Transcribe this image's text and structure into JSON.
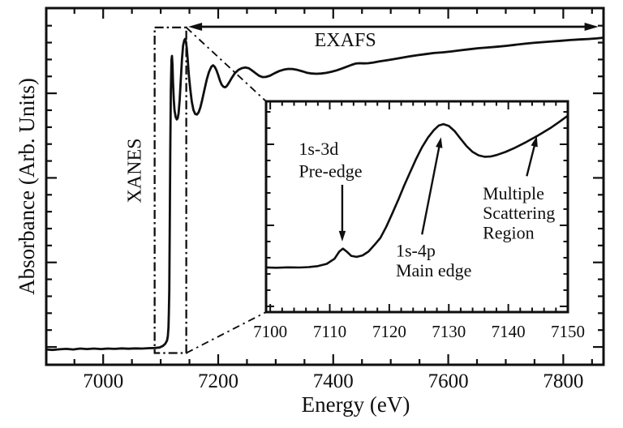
{
  "figure": {
    "background": "#ffffff",
    "ink_color": "#0f0f0f",
    "xlabel": "Energy (eV)",
    "ylabel": "Absorbance (Arb. Units)"
  },
  "chart_data": [
    {
      "id": "main",
      "type": "line",
      "title": "",
      "xlabel": "Energy (eV)",
      "ylabel": "Absorbance (Arb. Units)",
      "xlim": [
        6901,
        7870
      ],
      "ylim": [
        0,
        1
      ],
      "grid": false,
      "x_ticks": {
        "major": [
          7000,
          7200,
          7400,
          7600,
          7800
        ],
        "minor": [
          6950,
          7050,
          7100,
          7150,
          7250,
          7300,
          7350,
          7450,
          7500,
          7550,
          7650,
          7700,
          7750,
          7850
        ],
        "labels": [
          "7000",
          "7200",
          "7400",
          "7600",
          "7800"
        ]
      },
      "y_ticks": {
        "major": [
          0.7611,
          0.524,
          0.287,
          0.0499
        ],
        "minor": [
          0.9507,
          0.9033,
          0.8559,
          0.8085,
          0.7137,
          0.6662,
          0.6188,
          0.5714,
          0.4766,
          0.4292,
          0.3818,
          0.3344,
          0.2396,
          0.1921,
          0.1447,
          0.0973
        ]
      },
      "series": [
        {
          "name": "absorption-spectrum",
          "points": [
            [
              6901,
              0.043
            ],
            [
              6912,
              0.0415
            ],
            [
              6924,
              0.0435
            ],
            [
              6936,
              0.0445
            ],
            [
              6948,
              0.043
            ],
            [
              6960,
              0.0455
            ],
            [
              6972,
              0.044
            ],
            [
              6984,
              0.0455
            ],
            [
              6996,
              0.044
            ],
            [
              7008,
              0.0455
            ],
            [
              7020,
              0.0445
            ],
            [
              7032,
              0.046
            ],
            [
              7044,
              0.045
            ],
            [
              7056,
              0.046
            ],
            [
              7068,
              0.0455
            ],
            [
              7080,
              0.0465
            ],
            [
              7090,
              0.047
            ],
            [
              7098,
              0.0485
            ],
            [
              7104,
              0.053
            ],
            [
              7108,
              0.059
            ],
            [
              7111,
              0.068
            ],
            [
              7112.5,
              0.08
            ],
            [
              7113.5,
              0.105
            ],
            [
              7114.3,
              0.15
            ],
            [
              7115,
              0.21
            ],
            [
              7115.8,
              0.4
            ],
            [
              7116.6,
              0.6
            ],
            [
              7117.6,
              0.77
            ],
            [
              7118.8,
              0.855
            ],
            [
              7119.6,
              0.866
            ],
            [
              7120.5,
              0.843
            ],
            [
              7121.5,
              0.79
            ],
            [
              7122.7,
              0.744
            ],
            [
              7124,
              0.714
            ],
            [
              7126,
              0.695
            ],
            [
              7128,
              0.688
            ],
            [
              7129.5,
              0.691
            ],
            [
              7131,
              0.704
            ],
            [
              7133,
              0.743
            ],
            [
              7135,
              0.8
            ],
            [
              7137,
              0.856
            ],
            [
              7139,
              0.895
            ],
            [
              7141,
              0.91
            ],
            [
              7142.5,
              0.9135
            ],
            [
              7144,
              0.906
            ],
            [
              7145.5,
              0.886
            ],
            [
              7147,
              0.856
            ],
            [
              7149,
              0.812
            ],
            [
              7151.5,
              0.772
            ],
            [
              7154,
              0.738
            ],
            [
              7157,
              0.714
            ],
            [
              7160,
              0.7035
            ],
            [
              7163,
              0.7015
            ],
            [
              7166,
              0.708
            ],
            [
              7169,
              0.7215
            ],
            [
              7172,
              0.741
            ],
            [
              7176,
              0.771
            ],
            [
              7180,
              0.799
            ],
            [
              7184,
              0.821
            ],
            [
              7188,
              0.8355
            ],
            [
              7191,
              0.8395
            ],
            [
              7194,
              0.8355
            ],
            [
              7197,
              0.8255
            ],
            [
              7200,
              0.812
            ],
            [
              7203,
              0.797
            ],
            [
              7206,
              0.7855
            ],
            [
              7209,
              0.7795
            ],
            [
              7212,
              0.778
            ],
            [
              7215,
              0.7815
            ],
            [
              7219,
              0.7915
            ],
            [
              7224,
              0.8055
            ],
            [
              7229,
              0.8175
            ],
            [
              7235,
              0.8265
            ],
            [
              7241,
              0.8315
            ],
            [
              7247,
              0.8335
            ],
            [
              7253,
              0.8315
            ],
            [
              7259,
              0.825
            ],
            [
              7265,
              0.8175
            ],
            [
              7271,
              0.8105
            ],
            [
              7277,
              0.8065
            ],
            [
              7283,
              0.807
            ],
            [
              7290,
              0.8105
            ],
            [
              7298,
              0.8175
            ],
            [
              7306,
              0.8235
            ],
            [
              7314,
              0.8275
            ],
            [
              7322,
              0.8295
            ],
            [
              7330,
              0.829
            ],
            [
              7338,
              0.8265
            ],
            [
              7347,
              0.8225
            ],
            [
              7355,
              0.8185
            ],
            [
              7363,
              0.8165
            ],
            [
              7371,
              0.816
            ],
            [
              7379,
              0.8165
            ],
            [
              7388,
              0.8185
            ],
            [
              7397,
              0.8215
            ],
            [
              7406,
              0.8255
            ],
            [
              7415,
              0.8305
            ],
            [
              7424,
              0.836
            ],
            [
              7432,
              0.841
            ],
            [
              7439,
              0.8445
            ],
            [
              7446,
              0.8455
            ],
            [
              7453,
              0.845
            ],
            [
              7461,
              0.8455
            ],
            [
              7470,
              0.8475
            ],
            [
              7480,
              0.8505
            ],
            [
              7492,
              0.8535
            ],
            [
              7504,
              0.8565
            ],
            [
              7518,
              0.8605
            ],
            [
              7532,
              0.8645
            ],
            [
              7546,
              0.868
            ],
            [
              7560,
              0.871
            ],
            [
              7575,
              0.874
            ],
            [
              7590,
              0.876
            ],
            [
              7605,
              0.8785
            ],
            [
              7620,
              0.8815
            ],
            [
              7636,
              0.8845
            ],
            [
              7652,
              0.8875
            ],
            [
              7668,
              0.8895
            ],
            [
              7684,
              0.8915
            ],
            [
              7700,
              0.894
            ],
            [
              7716,
              0.897
            ],
            [
              7732,
              0.9
            ],
            [
              7748,
              0.9025
            ],
            [
              7764,
              0.9045
            ],
            [
              7780,
              0.9065
            ],
            [
              7796,
              0.9085
            ],
            [
              7812,
              0.9105
            ],
            [
              7828,
              0.912
            ],
            [
              7844,
              0.9135
            ],
            [
              7858,
              0.915
            ],
            [
              7870,
              0.917
            ]
          ]
        }
      ],
      "region_box": {
        "label": "XANES",
        "x1": 7089.5,
        "x2": 7144.5,
        "y1": 0.033,
        "y2": 0.9457,
        "label_at": {
          "x": 7056.6,
          "y": 0.5443
        }
      },
      "range_arrow": {
        "label": "EXAFS",
        "x1": 7148,
        "x2": 7861,
        "y": 0.9477,
        "label_at": {
          "x": 7421,
          "y": 0.8932
        }
      }
    },
    {
      "id": "inset",
      "type": "line",
      "title": "",
      "xlabel": "",
      "ylabel": "",
      "xlim": [
        7099.3,
        7150
      ],
      "ylim": [
        0,
        1
      ],
      "grid": false,
      "x_ticks": {
        "major": [
          7100,
          7110,
          7120,
          7130,
          7140,
          7150
        ],
        "minor": [
          7102,
          7104,
          7106,
          7108,
          7112,
          7114,
          7116,
          7118,
          7122,
          7124,
          7126,
          7128,
          7132,
          7134,
          7136,
          7138,
          7142,
          7144,
          7146,
          7148
        ],
        "labels": [
          "7100",
          "7110",
          "7120",
          "7130",
          "7140",
          "7150"
        ]
      },
      "y_ticks": {
        "major": [
          0.7962,
          0.4117,
          0.0272
        ],
        "minor": [
          0.95,
          0.8731,
          0.7193,
          0.6424,
          0.5655,
          0.4886,
          0.3348,
          0.2579,
          0.181,
          0.1041
        ]
      },
      "series": [
        {
          "name": "xanes-detail",
          "points": [
            [
              7099.3,
              0.212
            ],
            [
              7101,
              0.2105
            ],
            [
              7103,
              0.2125
            ],
            [
              7105,
              0.2115
            ],
            [
              7106.5,
              0.2135
            ],
            [
              7108,
              0.218
            ],
            [
              7109.5,
              0.229
            ],
            [
              7110.8,
              0.253
            ],
            [
              7111.6,
              0.287
            ],
            [
              7112.2,
              0.301
            ],
            [
              7112.8,
              0.288
            ],
            [
              7113.6,
              0.267
            ],
            [
              7114.5,
              0.262
            ],
            [
              7115.5,
              0.269
            ],
            [
              7116.5,
              0.287
            ],
            [
              7117.5,
              0.318
            ],
            [
              7118.5,
              0.352
            ],
            [
              7119.5,
              0.405
            ],
            [
              7120.5,
              0.468
            ],
            [
              7121.5,
              0.532
            ],
            [
              7122.5,
              0.6
            ],
            [
              7123.5,
              0.664
            ],
            [
              7124.5,
              0.726
            ],
            [
              7125.5,
              0.782
            ],
            [
              7126.5,
              0.828
            ],
            [
              7127.5,
              0.864
            ],
            [
              7128.3,
              0.885
            ],
            [
              7129.1,
              0.892
            ],
            [
              7130,
              0.883
            ],
            [
              7131,
              0.858
            ],
            [
              7132,
              0.822
            ],
            [
              7133,
              0.787
            ],
            [
              7134,
              0.76
            ],
            [
              7135,
              0.744
            ],
            [
              7136,
              0.737
            ],
            [
              7137,
              0.738
            ],
            [
              7138,
              0.745
            ],
            [
              7139.5,
              0.7595
            ],
            [
              7141,
              0.778
            ],
            [
              7143,
              0.8065
            ],
            [
              7145,
              0.838
            ],
            [
              7147,
              0.872
            ],
            [
              7148.5,
              0.901
            ],
            [
              7150,
              0.932
            ]
          ]
        }
      ],
      "annotations": [
        {
          "name": "pre-edge",
          "lines": [
            "1s-3d",
            "Pre-edge"
          ],
          "text_at": {
            "x": 7104.8,
            "y": 0.746
          },
          "line_step": 0.105,
          "arrow": {
            "from": {
              "x": 7112.1,
              "y": 0.604
            },
            "to": {
              "x": 7112.1,
              "y": 0.335
            }
          }
        },
        {
          "name": "main-edge",
          "lines": [
            "1s-4p",
            "Main edge"
          ],
          "text_at": {
            "x": 7121.1,
            "y": 0.263
          },
          "line_step": 0.094,
          "arrow": {
            "from": {
              "x": 7125.5,
              "y": 0.368
            },
            "to": {
              "x": 7128.7,
              "y": 0.83
            }
          }
        },
        {
          "name": "multiple-scattering",
          "lines": [
            "Multiple",
            "Scattering",
            "Region"
          ],
          "text_at": {
            "x": 7135.7,
            "y": 0.535
          },
          "line_step": 0.0935,
          "arrow": {
            "from": {
              "x": 7143.1,
              "y": 0.645
            },
            "to": {
              "x": 7144.8,
              "y": 0.835
            }
          }
        }
      ]
    }
  ]
}
